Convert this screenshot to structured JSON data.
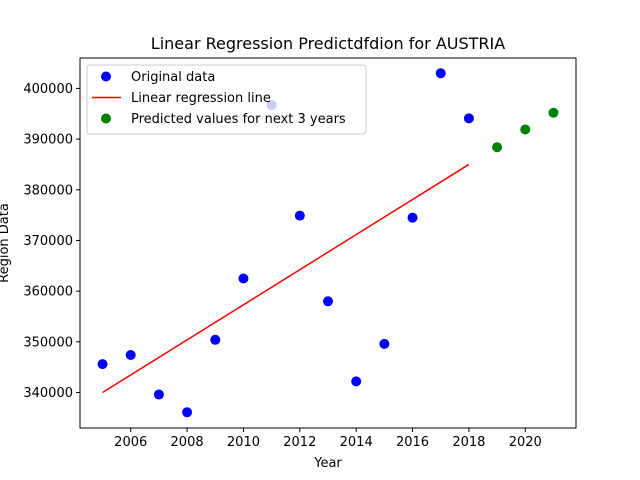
{
  "chart_data": {
    "type": "scatter",
    "title": "Linear Regression Predictdfdion for AUSTRIA",
    "xlabel": "Year",
    "ylabel": "Region Data",
    "xlim": [
      2004.2,
      2021.8
    ],
    "ylim": [
      333000,
      406000
    ],
    "x_ticks": [
      2006,
      2008,
      2010,
      2012,
      2014,
      2016,
      2018,
      2020
    ],
    "y_ticks": [
      340000,
      350000,
      360000,
      370000,
      380000,
      390000,
      400000
    ],
    "y_tick_labels": [
      "340000",
      "350000",
      "360000",
      "370000",
      "380000",
      "390000",
      "400000"
    ],
    "legend_position": "top-left",
    "series": [
      {
        "name": "Original data",
        "kind": "scatter",
        "color": "#0000ff",
        "points": [
          {
            "x": 2005,
            "y": 345600
          },
          {
            "x": 2006,
            "y": 347400
          },
          {
            "x": 2007,
            "y": 339600
          },
          {
            "x": 2008,
            "y": 336100
          },
          {
            "x": 2009,
            "y": 350400
          },
          {
            "x": 2010,
            "y": 362500
          },
          {
            "x": 2011,
            "y": 396700
          },
          {
            "x": 2012,
            "y": 374900
          },
          {
            "x": 2013,
            "y": 358000
          },
          {
            "x": 2014,
            "y": 342200
          },
          {
            "x": 2015,
            "y": 349600
          },
          {
            "x": 2016,
            "y": 374500
          },
          {
            "x": 2017,
            "y": 403000
          },
          {
            "x": 2018,
            "y": 394100
          }
        ]
      },
      {
        "name": "Linear regression line",
        "kind": "line",
        "color": "#ff0000",
        "points": [
          {
            "x": 2005,
            "y": 340000
          },
          {
            "x": 2018,
            "y": 385000
          }
        ]
      },
      {
        "name": "Predicted values for next 3 years",
        "kind": "scatter",
        "color": "#008000",
        "points": [
          {
            "x": 2019,
            "y": 388400
          },
          {
            "x": 2020,
            "y": 391900
          },
          {
            "x": 2021,
            "y": 395200
          }
        ]
      }
    ]
  }
}
